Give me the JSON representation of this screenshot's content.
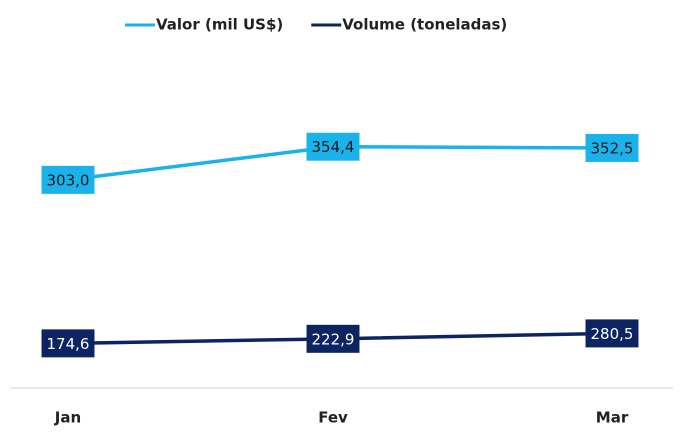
{
  "chart_data": {
    "type": "line",
    "categories": [
      "Jan",
      "Fev",
      "Mar"
    ],
    "series": [
      {
        "name": "Valor (mil US$)",
        "color": "#1ab2ea",
        "values": [
          303.0,
          354.4,
          352.5
        ],
        "value_labels": [
          "303,0",
          "354,4",
          "352,5"
        ]
      },
      {
        "name": "Volume (toneladas)",
        "color": "#0c2461",
        "values": [
          174.6,
          222.9,
          280.5
        ],
        "value_labels": [
          "174,6",
          "222,9",
          "280,5"
        ],
        "axis": "y2"
      }
    ],
    "ylim": [
      -20,
      520
    ],
    "y2lim": [
      -300,
      3400
    ],
    "legend": "top"
  }
}
